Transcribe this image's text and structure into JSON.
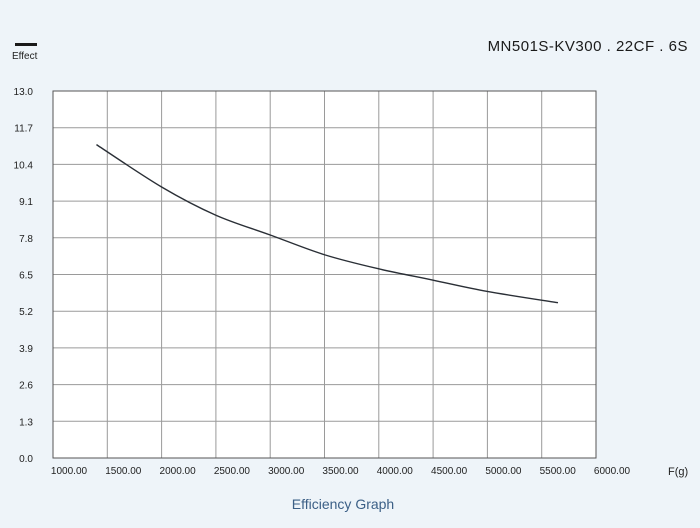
{
  "legend": {
    "label": "Effect",
    "color": "#1a1a1a"
  },
  "model": "MN501S-KV300 . 22CF . 6S",
  "caption": "Efficiency Graph",
  "chart_data": {
    "type": "line",
    "title": "Efficiency Graph",
    "xlabel": "F(g)",
    "ylabel": "",
    "xlim": [
      1000,
      6000
    ],
    "ylim": [
      0,
      13
    ],
    "x_ticks": [
      "1000.00",
      "1500.00",
      "2000.00",
      "2500.00",
      "3000.00",
      "3500.00",
      "4000.00",
      "4500.00",
      "5000.00",
      "5500.00",
      "6000.00"
    ],
    "y_ticks": [
      "0.0",
      "1.3",
      "2.6",
      "3.9",
      "5.2",
      "6.5",
      "7.8",
      "9.1",
      "10.4",
      "11.7",
      "13.0"
    ],
    "grid": true,
    "legend_position": "top-left",
    "series": [
      {
        "name": "Effect",
        "color": "#2a2f36",
        "x": [
          1400,
          2000,
          2500,
          3000,
          3500,
          4000,
          4500,
          5000,
          5650
        ],
        "y": [
          11.1,
          9.6,
          8.6,
          7.9,
          7.2,
          6.7,
          6.3,
          5.9,
          5.5
        ]
      }
    ]
  }
}
